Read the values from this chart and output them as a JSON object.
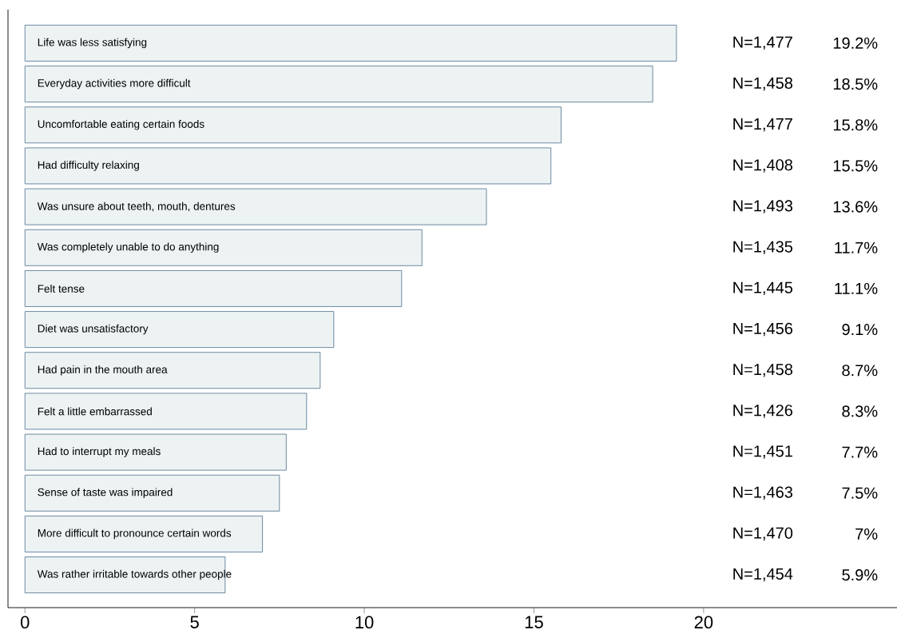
{
  "chart_data": {
    "type": "bar",
    "orientation": "horizontal",
    "tick_labels": "x",
    "categories": [
      "Life was less satisfying",
      "Everyday activities more difficult",
      "Uncomfortable eating certain foods",
      "Had difficulty relaxing",
      "Was unsure about teeth, mouth, dentures",
      "Was completely unable to do anything",
      "Felt tense",
      "Diet was unsatisfactory",
      "Had pain in the mouth area",
      "Felt a little embarrassed",
      "Had to interrupt my meals",
      "Sense of taste was impaired",
      "More difficult to pronounce certain words",
      "Was rather irritable towards other people"
    ],
    "values": [
      19.2,
      18.5,
      15.8,
      15.5,
      13.6,
      11.7,
      11.1,
      9.1,
      8.7,
      8.3,
      7.7,
      7.5,
      7,
      5.9
    ],
    "value_labels": [
      "19.2%",
      "18.5%",
      "15.8%",
      "15.5%",
      "13.6%",
      "11.7%",
      "11.1%",
      "9.1%",
      "8.7%",
      "8.3%",
      "7.7%",
      "7.5%",
      "7%",
      "5.9%"
    ],
    "annotations": [
      "N=1,477",
      "N=1,458",
      "N=1,477",
      "N=1,408",
      "N=1,493",
      "N=1,435",
      "N=1,445",
      "N=1,456",
      "N=1,458",
      "N=1,426",
      "N=1,451",
      "N=1,463",
      "N=1,470",
      "N=1,454"
    ],
    "color": "#edf3f3",
    "xlim": [
      -0.5,
      25.7
    ],
    "xticks": [
      0,
      5,
      10,
      15,
      20
    ]
  }
}
